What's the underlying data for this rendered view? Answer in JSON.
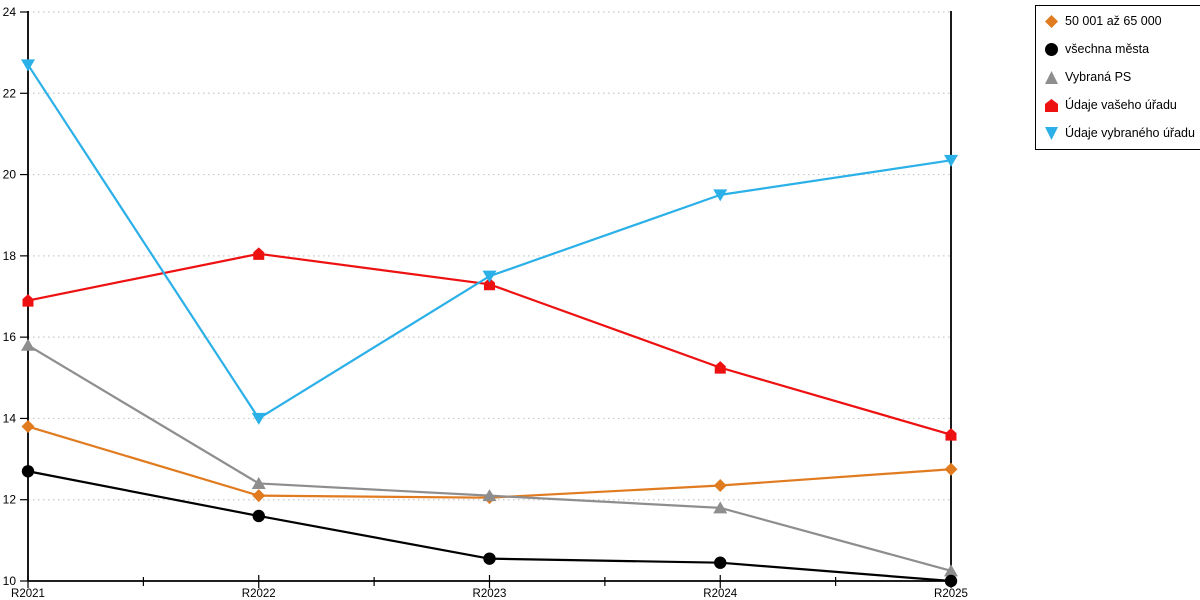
{
  "chart_data": {
    "type": "line",
    "title": "",
    "xlabel": "",
    "ylabel": "",
    "categories": [
      "R2021",
      "R2022",
      "R2023",
      "R2024",
      "R2025"
    ],
    "series": [
      {
        "name": "50 001 až 65 000",
        "color": "#E07B20",
        "marker": "diamond",
        "values": [
          13.8,
          12.1,
          12.05,
          12.35,
          12.75
        ]
      },
      {
        "name": "všechna města",
        "color": "#000000",
        "marker": "circle",
        "values": [
          12.7,
          11.6,
          10.55,
          10.45,
          10.0
        ]
      },
      {
        "name": "Vybraná PS",
        "color": "#8E8E8E",
        "marker": "triangle-up",
        "values": [
          15.8,
          12.4,
          12.1,
          11.8,
          10.25
        ]
      },
      {
        "name": "Údaje vašeho úřadu",
        "color": "#EE1111",
        "marker": "pentagon",
        "values": [
          16.9,
          18.05,
          17.3,
          15.25,
          13.6
        ]
      },
      {
        "name": "Údaje vybraného úřadu",
        "color": "#2BB0E8",
        "marker": "triangle-down",
        "values": [
          22.7,
          14.0,
          17.5,
          19.5,
          20.35
        ]
      }
    ],
    "ylim": [
      10,
      24
    ],
    "yticks": [
      10,
      12,
      14,
      16,
      18,
      20,
      22,
      24
    ],
    "grid": "horizontal-dotted",
    "legend_position": "top-right"
  },
  "colors": {
    "background": "#FFFFFF",
    "axis": "#000000",
    "gridline": "#C8C8C8",
    "tick_label": "#000000"
  }
}
